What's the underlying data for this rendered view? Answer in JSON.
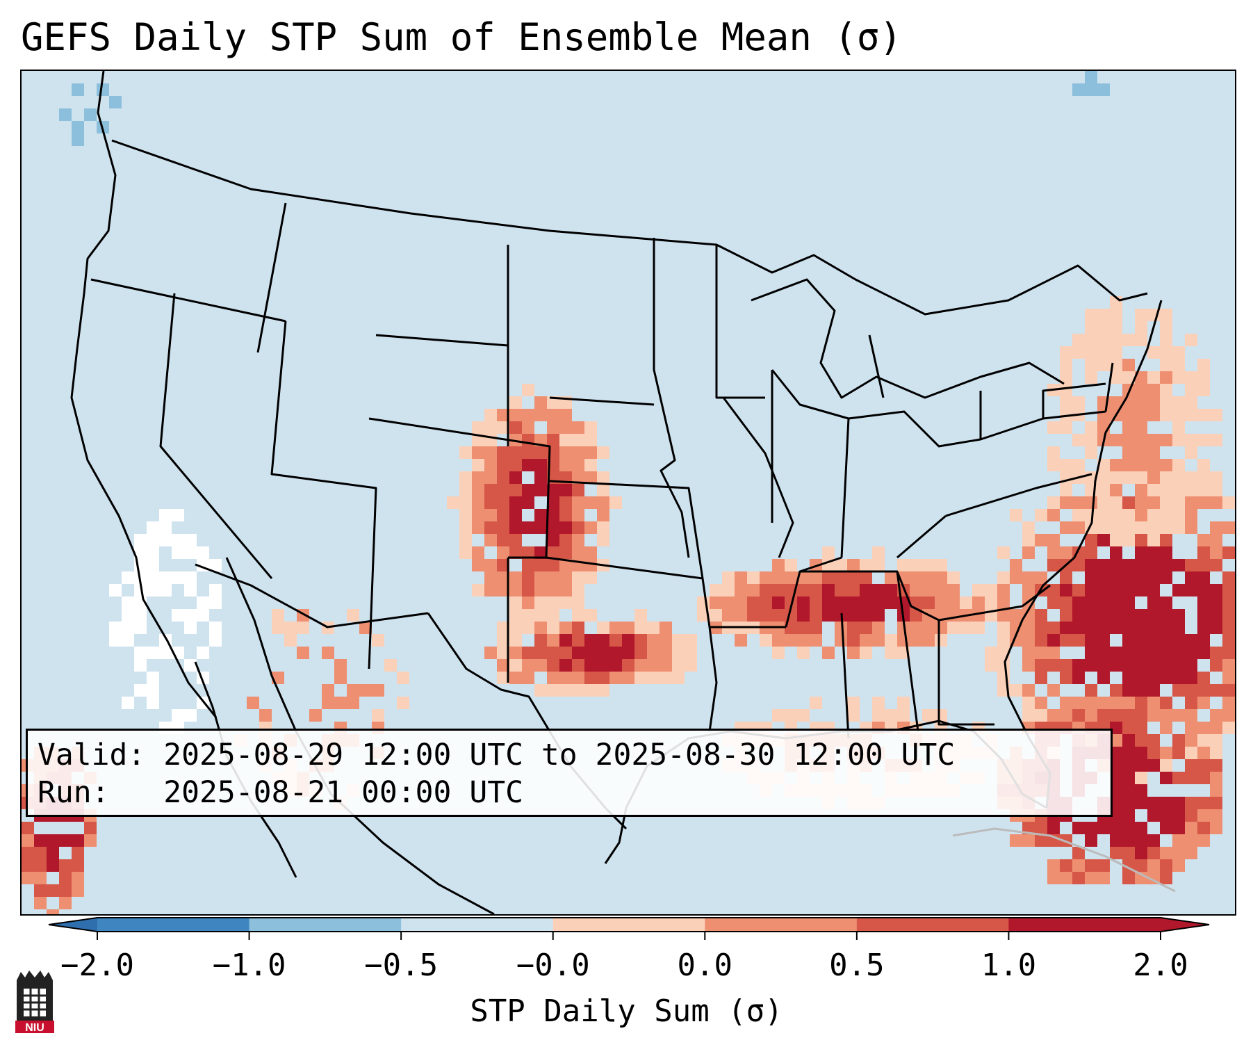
{
  "figure": {
    "title": "GEFS Daily STP Sum of Ensemble Mean (σ)",
    "info": {
      "valid_label": "Valid:",
      "valid_value": "2025-08-29 12:00 UTC to 2025-08-30 12:00 UTC",
      "run_label": "Run:",
      "run_value": "2025-08-21 00:00 UTC"
    },
    "colorbar": {
      "label": "STP Daily Sum (σ)",
      "ticks": [
        "−2.0",
        "−1.0",
        "−0.5",
        "−0.0",
        "0.0",
        "0.5",
        "1.0",
        "2.0"
      ],
      "colors": [
        "#3f86c0",
        "#8bbfdc",
        "#cfe3ef",
        "#ffffff",
        "#fbd0b8",
        "#ee8f71",
        "#d65748",
        "#b2182b"
      ],
      "extend": "both"
    },
    "map": {
      "projection": "Lambert Conformal, CONUS",
      "background_color": "#cfe3ef",
      "anomaly_regions": [
        {
          "region": "US Southeast Atlantic coast and offshore",
          "category": "1.0 to 2.0+"
        },
        {
          "region": "Tennessee Valley / Alabama / Mississippi",
          "category": "1.0 to 2.0+"
        },
        {
          "region": "Western Kansas / Colorado / Oklahoma panhandle",
          "category": "0.5 to 2.0+"
        },
        {
          "region": "West Texas",
          "category": "1.0 to 2.0+"
        },
        {
          "region": "Northeast US / offshore New England",
          "category": "0.0 to 1.0"
        },
        {
          "region": "Caribbean / Cuba",
          "category": "1.0 to 2.0+"
        },
        {
          "region": "Pacific Northwest / California coast",
          "category": "−0.5 to 0.0"
        }
      ]
    },
    "logo": {
      "text": "NIU",
      "name": "niu-logo"
    }
  }
}
